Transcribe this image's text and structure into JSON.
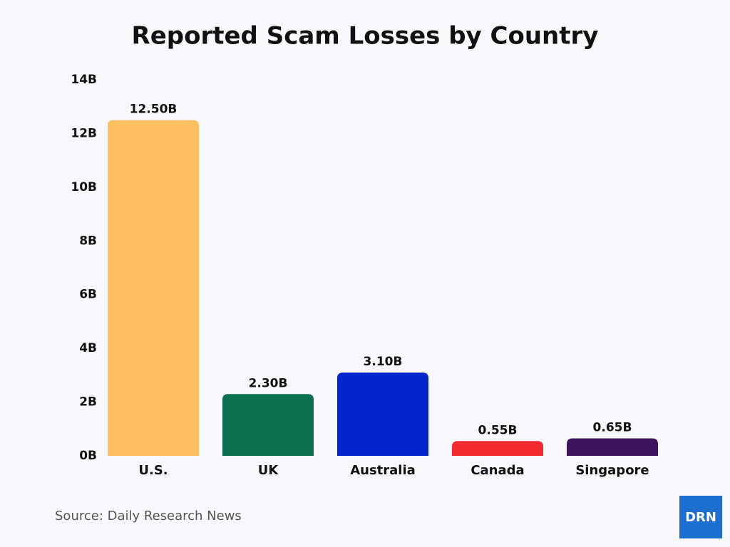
{
  "chart_data": {
    "type": "bar",
    "title": "Reported Scam Losses by Country",
    "categories": [
      "U.S.",
      "UK",
      "Australia",
      "Canada",
      "Singapore"
    ],
    "values": [
      12.5,
      2.3,
      3.1,
      0.55,
      0.65
    ],
    "value_labels": [
      "12.50B",
      "2.30B",
      "3.10B",
      "0.55B",
      "0.65B"
    ],
    "colors": [
      "#fdbf5f",
      "#0b7150",
      "#0225cc",
      "#f42b2e",
      "#3c145f"
    ],
    "ylim": [
      0,
      14
    ],
    "yticks": [
      {
        "value": 0,
        "label": "0B"
      },
      {
        "value": 2,
        "label": "2B"
      },
      {
        "value": 4,
        "label": "4B"
      },
      {
        "value": 6,
        "label": "6B"
      },
      {
        "value": 8,
        "label": "8B"
      },
      {
        "value": 10,
        "label": "10B"
      },
      {
        "value": 12,
        "label": "12B"
      },
      {
        "value": 14,
        "label": "14B"
      }
    ],
    "grid": false,
    "source": "Source: Daily Research News"
  },
  "logo": "DRN"
}
